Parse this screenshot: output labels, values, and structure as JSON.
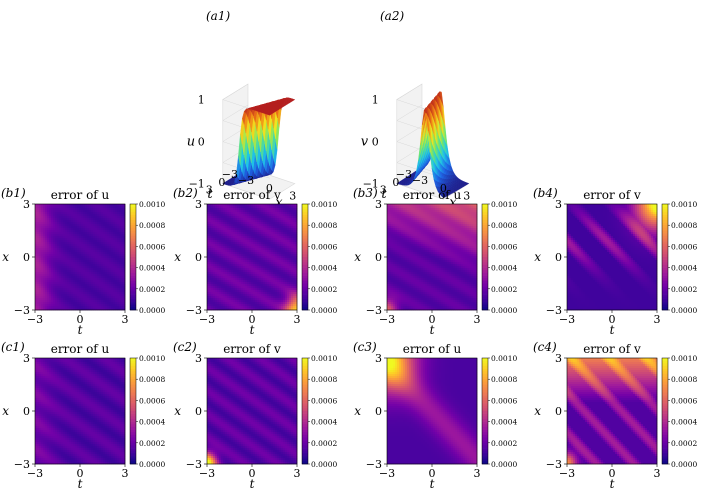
{
  "colormaps": {
    "plasma": [
      "#0d0887",
      "#46039f",
      "#7201a8",
      "#9c179e",
      "#bd3786",
      "#d8576b",
      "#ed7953",
      "#fb9f3a",
      "#fdca26",
      "#f0f921"
    ],
    "jet_surface": [
      "#1e1e8c",
      "#1e64e6",
      "#1ec8e6",
      "#6ee66e",
      "#f0e61e",
      "#f07814",
      "#b41e1e"
    ]
  },
  "surfaces": [
    {
      "label": "(a1)",
      "zlabel": "u",
      "xlabel": "x",
      "tlabel": "t",
      "ztick_labels": [
        "1",
        "0",
        "−1"
      ],
      "t_tick_labels": [
        "3",
        "0",
        "−3"
      ],
      "x_tick_labels": [
        "−3",
        "0",
        "3"
      ],
      "solution": "kink",
      "zlim": [
        -1,
        1
      ]
    },
    {
      "label": "(a2)",
      "zlabel": "v",
      "xlabel": "x",
      "tlabel": "t",
      "ztick_labels": [
        "1",
        "0",
        "−1"
      ],
      "t_tick_labels": [
        "3",
        "0",
        "−3"
      ],
      "x_tick_labels": [
        "−3",
        "0",
        "3"
      ],
      "solution": "bright soliton",
      "zlim": [
        -1,
        1
      ]
    }
  ],
  "chart_data": [
    {
      "type": "heatmap",
      "panel": "(b1)",
      "title": "error of u",
      "xlabel": "t",
      "ylabel": "x",
      "xlim": [
        -3,
        3
      ],
      "ylim": [
        -3,
        3
      ],
      "clim": [
        0,
        0.001
      ],
      "colorbar_ticks": [
        "0.0010",
        "0.0008",
        "0.0006",
        "0.0004",
        "0.0002",
        "0.0000"
      ],
      "x_tick_labels": [
        "−3",
        "0",
        "3"
      ],
      "y_tick_labels": [
        "3",
        "0",
        "−3"
      ],
      "colormap": "plasma",
      "max_error_region": "left edge"
    },
    {
      "type": "heatmap",
      "panel": "(b2)",
      "title": "error of v",
      "xlabel": "t",
      "ylabel": "x",
      "xlim": [
        -3,
        3
      ],
      "ylim": [
        -3,
        3
      ],
      "clim": [
        0,
        0.001
      ],
      "colorbar_ticks": [
        "0.0010",
        "0.0008",
        "0.0006",
        "0.0004",
        "0.0002",
        "0.0000"
      ],
      "x_tick_labels": [
        "−3",
        "0",
        "3"
      ],
      "y_tick_labels": [
        "3",
        "0",
        "−3"
      ],
      "colormap": "plasma",
      "max_error_region": "bottom-right corner"
    },
    {
      "type": "heatmap",
      "panel": "(b3)",
      "title": "error of u",
      "xlabel": "t",
      "ylabel": "x",
      "xlim": [
        -3,
        3
      ],
      "ylim": [
        -3,
        3
      ],
      "clim": [
        0,
        0.001
      ],
      "colorbar_ticks": [
        "0.0010",
        "0.0008",
        "0.0006",
        "0.0004",
        "0.0002",
        "0.0000"
      ],
      "x_tick_labels": [
        "−3",
        "0",
        "3"
      ],
      "y_tick_labels": [
        "3",
        "0",
        "−3"
      ],
      "colormap": "plasma",
      "max_error_region": "top band"
    },
    {
      "type": "heatmap",
      "panel": "(b4)",
      "title": "error of v",
      "xlabel": "t",
      "ylabel": "x",
      "xlim": [
        -3,
        3
      ],
      "ylim": [
        -3,
        3
      ],
      "clim": [
        0,
        0.001
      ],
      "colorbar_ticks": [
        "0.0010",
        "0.0008",
        "0.0006",
        "0.0004",
        "0.0002",
        "0.0000"
      ],
      "x_tick_labels": [
        "−3",
        "0",
        "3"
      ],
      "y_tick_labels": [
        "3",
        "0",
        "−3"
      ],
      "colormap": "plasma",
      "max_error_region": "top-right corner"
    },
    {
      "type": "heatmap",
      "panel": "(c1)",
      "title": "error of u",
      "xlabel": "t",
      "ylabel": "x",
      "xlim": [
        -3,
        3
      ],
      "ylim": [
        -3,
        3
      ],
      "clim": [
        0,
        0.001
      ],
      "colorbar_ticks": [
        "0.0010",
        "0.0008",
        "0.0006",
        "0.0004",
        "0.0002",
        "0.0000"
      ],
      "x_tick_labels": [
        "−3",
        "0",
        "3"
      ],
      "y_tick_labels": [
        "3",
        "0",
        "−3"
      ],
      "colormap": "plasma",
      "max_error_region": "uniformly low"
    },
    {
      "type": "heatmap",
      "panel": "(c2)",
      "title": "error of v",
      "xlabel": "t",
      "ylabel": "x",
      "xlim": [
        -3,
        3
      ],
      "ylim": [
        -3,
        3
      ],
      "clim": [
        0,
        0.001
      ],
      "colorbar_ticks": [
        "0.0010",
        "0.0008",
        "0.0006",
        "0.0004",
        "0.0002",
        "0.0000"
      ],
      "x_tick_labels": [
        "−3",
        "0",
        "3"
      ],
      "y_tick_labels": [
        "3",
        "0",
        "−3"
      ],
      "colormap": "plasma",
      "max_error_region": "bottom-left corner"
    },
    {
      "type": "heatmap",
      "panel": "(c3)",
      "title": "error of u",
      "xlabel": "t",
      "ylabel": "x",
      "xlim": [
        -3,
        3
      ],
      "ylim": [
        -3,
        3
      ],
      "clim": [
        0,
        0.001
      ],
      "colorbar_ticks": [
        "0.0010",
        "0.0008",
        "0.0006",
        "0.0004",
        "0.0002",
        "0.0000"
      ],
      "x_tick_labels": [
        "−3",
        "0",
        "3"
      ],
      "y_tick_labels": [
        "3",
        "0",
        "−3"
      ],
      "colormap": "plasma",
      "max_error_region": "top-left corner"
    },
    {
      "type": "heatmap",
      "panel": "(c4)",
      "title": "error of v",
      "xlabel": "t",
      "ylabel": "x",
      "xlim": [
        -3,
        3
      ],
      "ylim": [
        -3,
        3
      ],
      "clim": [
        0,
        0.001
      ],
      "colorbar_ticks": [
        "0.0010",
        "0.0008",
        "0.0006",
        "0.0004",
        "0.0002",
        "0.0000"
      ],
      "x_tick_labels": [
        "−3",
        "0",
        "3"
      ],
      "y_tick_labels": [
        "3",
        "0",
        "−3"
      ],
      "colormap": "plasma",
      "max_error_region": "top band"
    }
  ]
}
